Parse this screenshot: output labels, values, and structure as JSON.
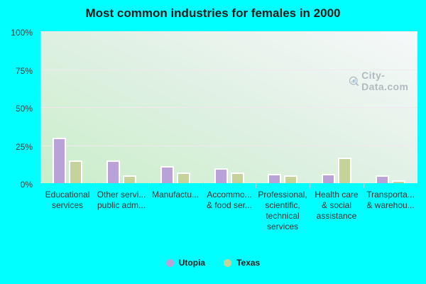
{
  "title": "Most common industries for females in 2000",
  "watermark": {
    "text": "City-Data.com",
    "icon": "magnifier-barchart-icon"
  },
  "colors": {
    "page_background": "#00ffff",
    "plot_gradient_top": "#f6f9fa",
    "plot_gradient_bottom": "#c9eeca",
    "gridline": "#f5e5f1",
    "bar_border": "#ffffff",
    "utopia": "#b9a2d8",
    "texas": "#c5d39a",
    "axis_text": "#333333",
    "watermark_text": "#a6b1b8"
  },
  "chart_data": {
    "type": "bar",
    "title": "Most common industries for females in 2000",
    "categories": [
      "Educational services",
      "Other servi... public adm...",
      "Manufactu...",
      "Accommo... & food ser...",
      "Professional, scientific, technical services",
      "Health care & social assistance",
      "Transporta... & warehou..."
    ],
    "category_display_lines": [
      [
        "Educational",
        "services"
      ],
      [
        "Other servi...",
        "public adm..."
      ],
      [
        "Manufactu..."
      ],
      [
        "Accommo...",
        "& food ser..."
      ],
      [
        "Professional,",
        "scientific,",
        "technical",
        "services"
      ],
      [
        "Health care",
        "& social",
        "assistance"
      ],
      [
        "Transporta...",
        "& warehou..."
      ]
    ],
    "series": [
      {
        "name": "Utopia",
        "color": "#b9a2d8",
        "values": [
          30,
          15,
          11,
          10,
          6,
          6,
          5
        ]
      },
      {
        "name": "Texas",
        "color": "#c5d39a",
        "values": [
          15,
          5,
          7,
          7,
          5,
          17,
          2
        ]
      }
    ],
    "xlabel": "",
    "ylabel": "",
    "ylim": [
      0,
      100
    ],
    "yticks": [
      {
        "value": 0,
        "label": "0%"
      },
      {
        "value": 25,
        "label": "25%"
      },
      {
        "value": 50,
        "label": "50%"
      },
      {
        "value": 75,
        "label": "75%"
      },
      {
        "value": 100,
        "label": "100%"
      }
    ],
    "grid": true,
    "legend_position": "bottom"
  }
}
